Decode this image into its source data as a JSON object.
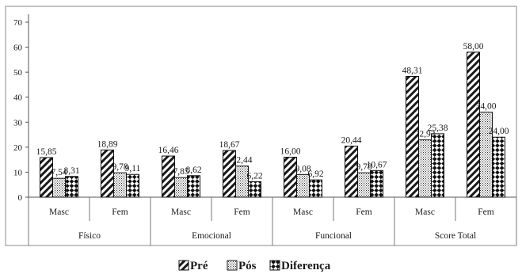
{
  "chart_data": {
    "type": "bar",
    "groups": [
      "Físico",
      "Emocional",
      "Funcional",
      "Score Total"
    ],
    "subcategories": [
      "Masc",
      "Fem"
    ],
    "series": [
      {
        "name": "Pré",
        "values": [
          15.85,
          18.89,
          16.46,
          18.67,
          16.0,
          20.44,
          48.31,
          58.0
        ],
        "labels": [
          "15,85",
          "18,89",
          "16,46",
          "18,67",
          "16,00",
          "20,44",
          "48,31",
          "58,00"
        ]
      },
      {
        "name": "Pós",
        "values": [
          7.54,
          9.78,
          7.85,
          12.44,
          9.08,
          9.78,
          22.92,
          34.0
        ],
        "labels": [
          "7,54",
          "9,78",
          "7,85",
          "12,44",
          "9,08",
          "9,78",
          "22,92",
          "34,00"
        ]
      },
      {
        "name": "Diferença",
        "values": [
          8.31,
          9.11,
          8.62,
          6.22,
          6.92,
          10.67,
          25.38,
          24.0
        ],
        "labels": [
          "8,31",
          "9,11",
          "8,62",
          "6,22",
          "6,92",
          "10,67",
          "25,38",
          "24,00"
        ]
      }
    ],
    "ylim": [
      0,
      70
    ],
    "yticks": [
      "0",
      "10",
      "20",
      "30",
      "40",
      "50",
      "60",
      "70"
    ],
    "legend_position": "bottom",
    "grid": false
  }
}
